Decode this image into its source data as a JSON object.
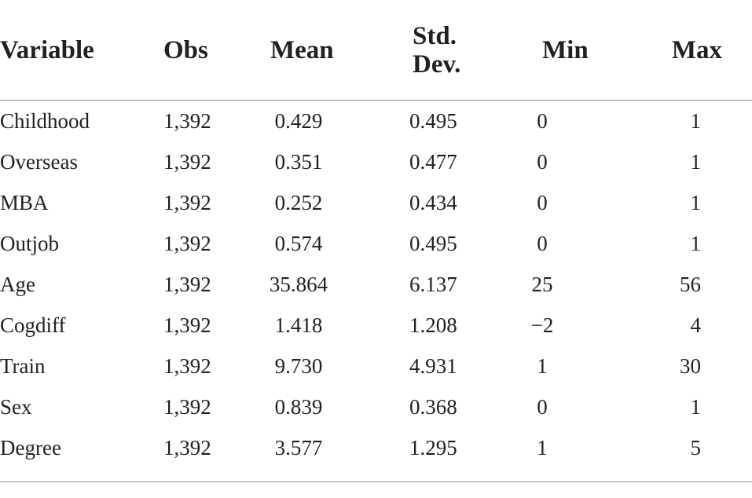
{
  "table": {
    "headers": {
      "variable": "Variable",
      "obs": "Obs",
      "mean": "Mean",
      "std_line1": "Std.",
      "std_line2": "Dev.",
      "min": "Min",
      "max": "Max"
    },
    "rows": [
      {
        "variable": "Childhood",
        "obs": "1,392",
        "mean": "0.429",
        "std": "0.495",
        "min": "0",
        "max": "1"
      },
      {
        "variable": "Overseas",
        "obs": "1,392",
        "mean": "0.351",
        "std": "0.477",
        "min": "0",
        "max": "1"
      },
      {
        "variable": "MBA",
        "obs": "1,392",
        "mean": "0.252",
        "std": "0.434",
        "min": "0",
        "max": "1"
      },
      {
        "variable": "Outjob",
        "obs": "1,392",
        "mean": "0.574",
        "std": "0.495",
        "min": "0",
        "max": "1"
      },
      {
        "variable": "Age",
        "obs": "1,392",
        "mean": "35.864",
        "std": "6.137",
        "min": "25",
        "max": "56"
      },
      {
        "variable": "Cogdiff",
        "obs": "1,392",
        "mean": "1.418",
        "std": "1.208",
        "min": "−2",
        "max": "4"
      },
      {
        "variable": "Train",
        "obs": "1,392",
        "mean": "9.730",
        "std": "4.931",
        "min": "1",
        "max": "30"
      },
      {
        "variable": "Sex",
        "obs": "1,392",
        "mean": "0.839",
        "std": "0.368",
        "min": "0",
        "max": "1"
      },
      {
        "variable": "Degree",
        "obs": "1,392",
        "mean": "3.577",
        "std": "1.295",
        "min": "1",
        "max": "5"
      }
    ]
  }
}
